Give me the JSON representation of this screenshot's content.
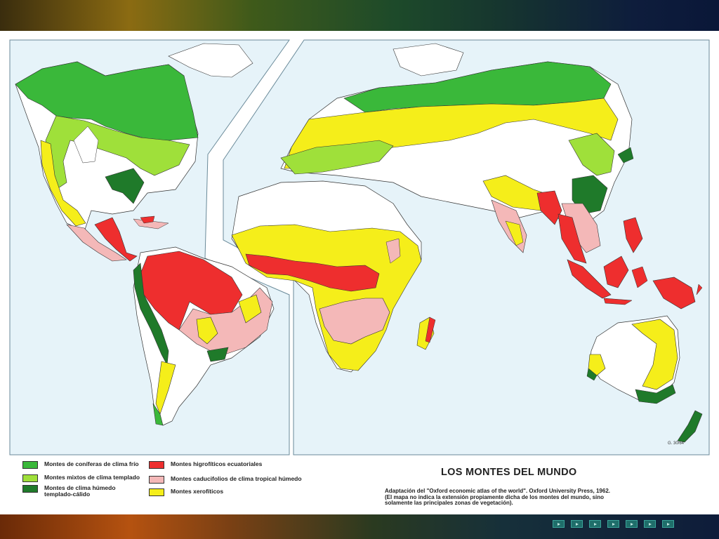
{
  "map": {
    "title": "LOS MONTES DEL MUNDO",
    "credit_line1": "Adaptación del \"Oxford economic atlas of the world\". Oxford University Press, 1962.",
    "credit_line2": "(El mapa no indica la extensión propiamente dicha de los montes del mundo, sino",
    "credit_line3": "solamente las principales zonas de vegetación).",
    "code": "G. 30/64"
  },
  "legend": [
    {
      "label": "Montes de coníferas de clima frío",
      "color": "#3ab83a"
    },
    {
      "label": "Montes mixtos de clima templado",
      "color": "#9fe03a"
    },
    {
      "label_line1": "Montes de clima húmedo",
      "label_line2": "templado-cálido",
      "color": "#1f7a2a"
    },
    {
      "label": "Montes higrofíticos ecuatoriales",
      "color": "#ee2e2e"
    },
    {
      "label": "Montes caducifolios de clima tropical húmedo",
      "color": "#f4b8b8"
    },
    {
      "label": "Montes xerofíticos",
      "color": "#f5ee1a"
    }
  ],
  "colors": {
    "ocean": "#e6f3f9",
    "land": "#ffffff"
  },
  "nav": [
    "prev-first",
    "prev",
    "prev-small",
    "next-small",
    "next",
    "next-last",
    "end"
  ]
}
